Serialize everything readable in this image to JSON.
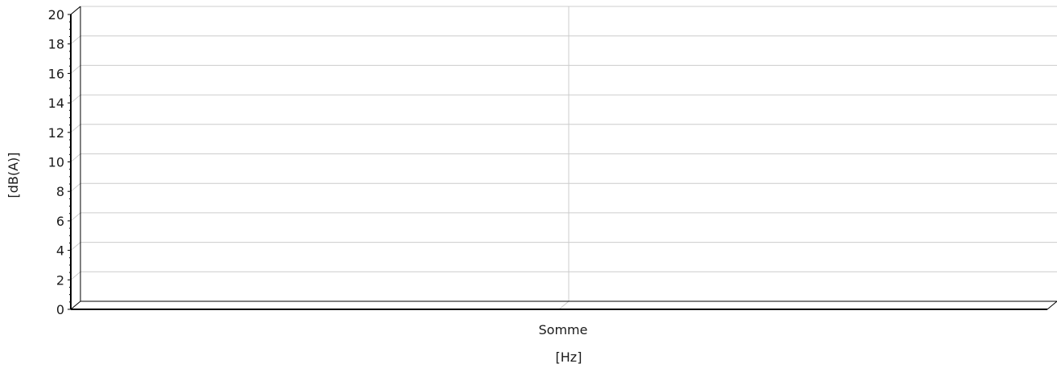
{
  "chart_data": {
    "type": "bar",
    "categories": [
      "Somme"
    ],
    "series": [],
    "xlabel": "[Hz]",
    "ylabel": "[dB(A)]",
    "ylim": [
      0,
      20
    ],
    "yticks": [
      0,
      2,
      4,
      6,
      8,
      10,
      12,
      14,
      16,
      18,
      20
    ],
    "grid": true,
    "legend": "none",
    "style": "3d",
    "colors": {
      "grid": "#cccccc",
      "axis": "#000000",
      "text": "#1a1a1a"
    }
  }
}
